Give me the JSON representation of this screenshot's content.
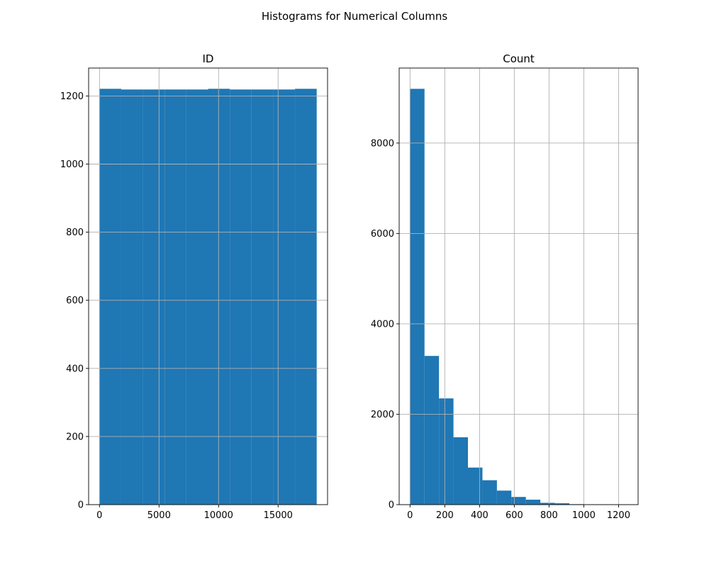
{
  "figure": {
    "suptitle": "Histograms for Numerical Columns"
  },
  "chart_data": [
    {
      "type": "bar",
      "title": "ID",
      "xlabel": "",
      "ylabel": "",
      "bin_edges": [
        0,
        1824,
        3648,
        5472,
        7296,
        9120,
        10944,
        12768,
        14592,
        16416,
        18240
      ],
      "values": [
        1221,
        1219,
        1219,
        1219,
        1219,
        1221,
        1219,
        1219,
        1219,
        1221
      ],
      "xlim": [
        -912,
        19152
      ],
      "ylim": [
        0,
        1282
      ],
      "xticks": [
        0,
        5000,
        10000,
        15000
      ],
      "xtick_labels": [
        "0",
        "5000",
        "10000",
        "15000"
      ],
      "yticks": [
        0,
        200,
        400,
        600,
        800,
        1000,
        1200
      ],
      "ytick_labels": [
        "0",
        "200",
        "400",
        "600",
        "800",
        "1000",
        "1200"
      ],
      "grid": true,
      "color": "#1f77b4"
    },
    {
      "type": "bar",
      "title": "Count",
      "xlabel": "",
      "ylabel": "",
      "bin_edges": [
        0,
        83.3,
        166.7,
        250,
        333.3,
        416.7,
        500,
        583.3,
        666.7,
        750,
        833.3,
        916.7,
        1000,
        1083.3,
        1166.7,
        1250
      ],
      "values": [
        9200,
        3290,
        2350,
        1490,
        820,
        540,
        310,
        170,
        110,
        40,
        30,
        10,
        5,
        3,
        2
      ],
      "xlim": [
        -62.5,
        1312.5
      ],
      "ylim": [
        0,
        9660
      ],
      "xticks": [
        0,
        200,
        400,
        600,
        800,
        1000,
        1200
      ],
      "xtick_labels": [
        "0",
        "200",
        "400",
        "600",
        "800",
        "1000",
        "1200"
      ],
      "yticks": [
        0,
        2000,
        4000,
        6000,
        8000
      ],
      "ytick_labels": [
        "0",
        "2000",
        "4000",
        "6000",
        "8000"
      ],
      "grid": true,
      "color": "#1f77b4"
    }
  ]
}
